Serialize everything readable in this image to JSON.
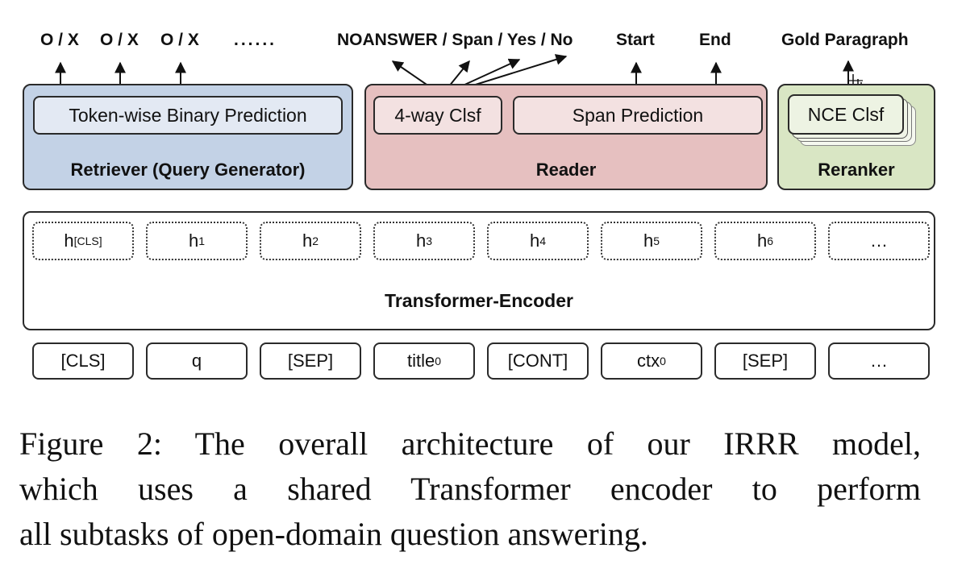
{
  "retriever": {
    "outputs": [
      "O / X",
      "O / X",
      "O / X"
    ],
    "ellipsis": "......",
    "inner_label": "Token-wise Binary Prediction",
    "title": "Retriever (Query Generator)",
    "color": "#c3d2e6",
    "inner_color": "#e3e9f3"
  },
  "reader": {
    "output_classes": "NOANSWER / Span / Yes / No",
    "output_start": "Start",
    "output_end": "End",
    "clsf_label": "4-way Clsf",
    "span_label": "Span Prediction",
    "title": "Reader",
    "color": "#e6c0c0",
    "inner_color": "#f3e1e1"
  },
  "reranker": {
    "output": "Gold Paragraph",
    "clsf_label": "NCE Clsf",
    "title": "Reranker",
    "color": "#d9e6c4",
    "inner_color": "#edf3e3"
  },
  "encoder": {
    "title": "Transformer-Encoder",
    "hidden": [
      {
        "base": "h",
        "sub": "[CLS]"
      },
      {
        "base": "h",
        "sub": "1"
      },
      {
        "base": "h",
        "sub": "2"
      },
      {
        "base": "h",
        "sub": "3"
      },
      {
        "base": "h",
        "sub": "4"
      },
      {
        "base": "h",
        "sub": "5"
      },
      {
        "base": "h",
        "sub": "6"
      },
      {
        "base": "…",
        "sub": ""
      }
    ]
  },
  "tokens": [
    {
      "base": "[CLS]",
      "sub": ""
    },
    {
      "base": "q",
      "sub": ""
    },
    {
      "base": "[SEP]",
      "sub": ""
    },
    {
      "base": "title",
      "sub": "0"
    },
    {
      "base": "[CONT]",
      "sub": ""
    },
    {
      "base": "ctx",
      "sub": "0"
    },
    {
      "base": "[SEP]",
      "sub": ""
    },
    {
      "base": "…",
      "sub": ""
    }
  ],
  "caption": {
    "line1": "Figure 2: The overall architecture of our IRRR model,",
    "line2": "which uses a shared Transformer encoder to perform",
    "line3": "all subtasks of open-domain question answering."
  }
}
